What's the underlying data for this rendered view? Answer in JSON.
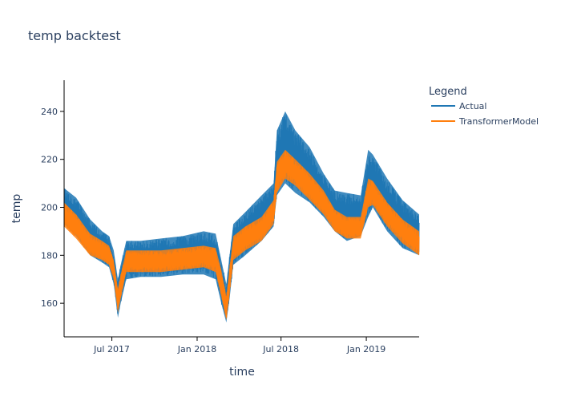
{
  "chart_data": {
    "type": "line",
    "title": "temp backtest",
    "xlabel": "time",
    "ylabel": "temp",
    "x_range": [
      "2017-03-20",
      "2019-04-25"
    ],
    "ylim": [
      146,
      253
    ],
    "x_ticks": [
      {
        "date": "2017-07-01",
        "label": "Jul 2017"
      },
      {
        "date": "2018-01-01",
        "label": "Jan 2018"
      },
      {
        "date": "2018-07-01",
        "label": "Jul 2018"
      },
      {
        "date": "2019-01-01",
        "label": "Jan 2019"
      }
    ],
    "y_ticks": [
      160,
      180,
      200,
      220,
      240
    ],
    "grid": false,
    "legend": {
      "title": "Legend",
      "placement": "right"
    },
    "series": [
      {
        "name": "Actual",
        "color": "#1f77b4",
        "band": true,
        "points": [
          [
            "2017-03-20",
            193,
            208
          ],
          [
            "2017-04-15",
            188,
            204
          ],
          [
            "2017-05-15",
            180,
            195
          ],
          [
            "2017-06-10",
            177,
            190
          ],
          [
            "2017-06-25",
            175,
            188
          ],
          [
            "2017-07-05",
            168,
            182
          ],
          [
            "2017-07-14",
            154,
            170
          ],
          [
            "2017-07-20",
            160,
            176
          ],
          [
            "2017-08-01",
            170,
            186
          ],
          [
            "2017-09-01",
            171,
            186
          ],
          [
            "2017-10-15",
            171,
            187
          ],
          [
            "2017-12-01",
            172,
            188
          ],
          [
            "2018-01-15",
            172,
            190
          ],
          [
            "2018-02-10",
            170,
            189
          ],
          [
            "2018-02-22",
            160,
            178
          ],
          [
            "2018-03-05",
            152,
            168
          ],
          [
            "2018-03-12",
            162,
            180
          ],
          [
            "2018-03-20",
            176,
            193
          ],
          [
            "2018-04-15",
            180,
            198
          ],
          [
            "2018-05-20",
            186,
            205
          ],
          [
            "2018-06-15",
            192,
            210
          ],
          [
            "2018-06-22",
            205,
            232
          ],
          [
            "2018-07-10",
            210,
            240
          ],
          [
            "2018-08-01",
            206,
            232
          ],
          [
            "2018-09-01",
            202,
            225
          ],
          [
            "2018-10-01",
            196,
            214
          ],
          [
            "2018-10-25",
            190,
            207
          ],
          [
            "2018-11-20",
            186,
            206
          ],
          [
            "2018-12-20",
            188,
            205
          ],
          [
            "2019-01-05",
            196,
            224
          ],
          [
            "2019-01-15",
            200,
            222
          ],
          [
            "2019-02-15",
            190,
            212
          ],
          [
            "2019-03-20",
            183,
            203
          ],
          [
            "2019-04-25",
            180,
            197
          ]
        ]
      },
      {
        "name": "TransformerModel",
        "color": "#ff7f0e",
        "band": true,
        "points": [
          [
            "2017-03-20",
            192,
            202
          ],
          [
            "2017-04-15",
            187,
            197
          ],
          [
            "2017-05-15",
            180,
            189
          ],
          [
            "2017-06-10",
            178,
            186
          ],
          [
            "2017-06-25",
            176,
            184
          ],
          [
            "2017-07-05",
            170,
            178
          ],
          [
            "2017-07-14",
            156,
            166
          ],
          [
            "2017-07-20",
            162,
            172
          ],
          [
            "2017-08-01",
            173,
            182
          ],
          [
            "2017-09-01",
            173,
            182
          ],
          [
            "2017-10-15",
            173,
            182
          ],
          [
            "2017-12-01",
            174,
            183
          ],
          [
            "2018-01-15",
            175,
            184
          ],
          [
            "2018-02-10",
            173,
            183
          ],
          [
            "2018-02-22",
            163,
            174
          ],
          [
            "2018-03-05",
            153,
            163
          ],
          [
            "2018-03-12",
            164,
            175
          ],
          [
            "2018-03-20",
            178,
            188
          ],
          [
            "2018-04-15",
            182,
            192
          ],
          [
            "2018-05-20",
            186,
            196
          ],
          [
            "2018-06-15",
            193,
            203
          ],
          [
            "2018-06-22",
            206,
            219
          ],
          [
            "2018-07-10",
            212,
            224
          ],
          [
            "2018-08-01",
            209,
            220
          ],
          [
            "2018-09-01",
            203,
            214
          ],
          [
            "2018-10-01",
            197,
            207
          ],
          [
            "2018-10-25",
            190,
            199
          ],
          [
            "2018-11-20",
            187,
            196
          ],
          [
            "2018-12-20",
            187,
            196
          ],
          [
            "2019-01-05",
            200,
            212
          ],
          [
            "2019-01-15",
            201,
            211
          ],
          [
            "2019-02-15",
            192,
            202
          ],
          [
            "2019-03-20",
            185,
            195
          ],
          [
            "2019-04-25",
            180,
            190
          ]
        ]
      }
    ]
  }
}
